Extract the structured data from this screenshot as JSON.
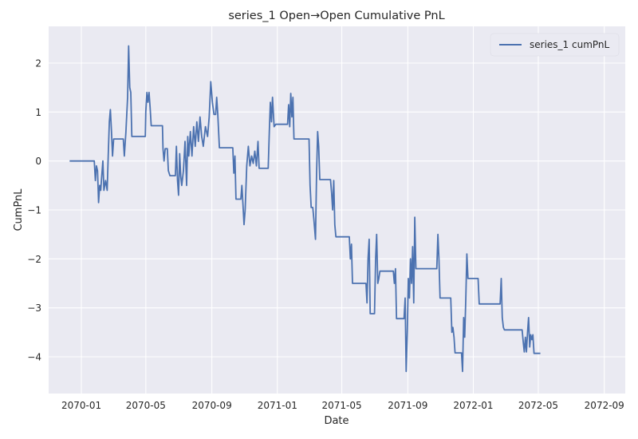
{
  "chart_data": {
    "type": "line",
    "title": "series_1 Open→Open Cumulative PnL",
    "xlabel": "Date",
    "ylabel": "CumPnL",
    "x_type": "date",
    "xlim": [
      "2069-11-01",
      "2072-10-10"
    ],
    "ylim": [
      -4.75,
      2.75
    ],
    "x_ticks": [
      "2070-01",
      "2070-05",
      "2070-09",
      "2071-01",
      "2071-05",
      "2071-09",
      "2072-01",
      "2072-05",
      "2072-09"
    ],
    "y_ticks": [
      -4,
      -3,
      -2,
      -1,
      0,
      1,
      2
    ],
    "grid": true,
    "background": "#eaeaf2",
    "legend": {
      "position": "top-right",
      "entries": [
        "series_1 cumPnL"
      ]
    },
    "series": [
      {
        "name": "series_1 cumPnL",
        "color": "#4c72b0",
        "points": [
          [
            "2069-12-10",
            0.0
          ],
          [
            "2070-01-25",
            0.0
          ],
          [
            "2070-01-27",
            -0.4
          ],
          [
            "2070-01-29",
            -0.1
          ],
          [
            "2070-01-31",
            -0.2
          ],
          [
            "2070-02-02",
            -0.85
          ],
          [
            "2070-02-04",
            -0.5
          ],
          [
            "2070-02-06",
            -0.6
          ],
          [
            "2070-02-08",
            -0.3
          ],
          [
            "2070-02-10",
            0.0
          ],
          [
            "2070-02-12",
            -0.6
          ],
          [
            "2070-02-15",
            -0.4
          ],
          [
            "2070-02-18",
            -0.6
          ],
          [
            "2070-02-20",
            0.1
          ],
          [
            "2070-02-22",
            0.8
          ],
          [
            "2070-02-24",
            1.05
          ],
          [
            "2070-02-26",
            0.6
          ],
          [
            "2070-02-28",
            0.1
          ],
          [
            "2070-03-02",
            0.45
          ],
          [
            "2070-03-20",
            0.45
          ],
          [
            "2070-03-22",
            0.1
          ],
          [
            "2070-03-25",
            0.6
          ],
          [
            "2070-03-28",
            1.3
          ],
          [
            "2070-03-30",
            2.35
          ],
          [
            "2070-04-01",
            1.5
          ],
          [
            "2070-04-03",
            1.4
          ],
          [
            "2070-04-05",
            0.5
          ],
          [
            "2070-04-30",
            0.5
          ],
          [
            "2070-05-01",
            1.0
          ],
          [
            "2070-05-03",
            1.4
          ],
          [
            "2070-05-05",
            1.2
          ],
          [
            "2070-05-07",
            1.4
          ],
          [
            "2070-05-09",
            1.1
          ],
          [
            "2070-05-11",
            0.72
          ],
          [
            "2070-06-01",
            0.72
          ],
          [
            "2070-06-02",
            0.25
          ],
          [
            "2070-06-04",
            0.0
          ],
          [
            "2070-06-06",
            0.25
          ],
          [
            "2070-06-10",
            0.25
          ],
          [
            "2070-06-12",
            -0.2
          ],
          [
            "2070-06-15",
            -0.3
          ],
          [
            "2070-06-25",
            -0.3
          ],
          [
            "2070-06-27",
            0.3
          ],
          [
            "2070-06-29",
            -0.4
          ],
          [
            "2070-07-01",
            -0.7
          ],
          [
            "2070-07-03",
            0.15
          ],
          [
            "2070-07-05",
            -0.3
          ],
          [
            "2070-07-07",
            -0.5
          ],
          [
            "2070-07-10",
            -0.2
          ],
          [
            "2070-07-13",
            0.4
          ],
          [
            "2070-07-16",
            -0.5
          ],
          [
            "2070-07-18",
            0.5
          ],
          [
            "2070-07-20",
            0.1
          ],
          [
            "2070-07-23",
            0.6
          ],
          [
            "2070-07-26",
            0.1
          ],
          [
            "2070-07-29",
            0.7
          ],
          [
            "2070-08-01",
            0.3
          ],
          [
            "2070-08-04",
            0.8
          ],
          [
            "2070-08-07",
            0.4
          ],
          [
            "2070-08-10",
            0.9
          ],
          [
            "2070-08-13",
            0.5
          ],
          [
            "2070-08-16",
            0.3
          ],
          [
            "2070-08-20",
            0.7
          ],
          [
            "2070-08-24",
            0.5
          ],
          [
            "2070-08-27",
            0.9
          ],
          [
            "2070-08-30",
            1.62
          ],
          [
            "2070-09-02",
            1.2
          ],
          [
            "2070-09-05",
            0.95
          ],
          [
            "2070-09-08",
            0.95
          ],
          [
            "2070-09-10",
            1.3
          ],
          [
            "2070-09-12",
            0.95
          ],
          [
            "2070-09-15",
            0.27
          ],
          [
            "2070-10-10",
            0.27
          ],
          [
            "2070-10-12",
            -0.25
          ],
          [
            "2070-10-14",
            0.1
          ],
          [
            "2070-10-16",
            -0.78
          ],
          [
            "2070-10-25",
            -0.78
          ],
          [
            "2070-10-27",
            -0.5
          ],
          [
            "2070-10-29",
            -0.9
          ],
          [
            "2070-10-31",
            -1.3
          ],
          [
            "2070-11-02",
            -1.0
          ],
          [
            "2070-11-05",
            -0.1
          ],
          [
            "2070-11-08",
            0.3
          ],
          [
            "2070-11-11",
            -0.1
          ],
          [
            "2070-11-14",
            0.1
          ],
          [
            "2070-11-17",
            -0.05
          ],
          [
            "2070-11-20",
            0.2
          ],
          [
            "2070-11-23",
            -0.1
          ],
          [
            "2070-11-26",
            0.4
          ],
          [
            "2070-11-28",
            -0.15
          ],
          [
            "2070-12-15",
            -0.15
          ],
          [
            "2070-12-17",
            0.6
          ],
          [
            "2070-12-19",
            1.2
          ],
          [
            "2070-12-21",
            0.8
          ],
          [
            "2070-12-23",
            1.3
          ],
          [
            "2070-12-26",
            0.7
          ],
          [
            "2070-12-29",
            0.75
          ],
          [
            "2071-01-20",
            0.75
          ],
          [
            "2071-01-22",
            1.15
          ],
          [
            "2071-01-24",
            0.7
          ],
          [
            "2071-01-26",
            1.38
          ],
          [
            "2071-01-28",
            0.9
          ],
          [
            "2071-01-30",
            1.3
          ],
          [
            "2071-02-01",
            0.45
          ],
          [
            "2071-03-01",
            0.45
          ],
          [
            "2071-03-03",
            -0.5
          ],
          [
            "2071-03-05",
            -0.95
          ],
          [
            "2071-03-08",
            -0.95
          ],
          [
            "2071-03-10",
            -1.2
          ],
          [
            "2071-03-13",
            -1.6
          ],
          [
            "2071-03-15",
            -0.3
          ],
          [
            "2071-03-17",
            0.6
          ],
          [
            "2071-03-19",
            0.3
          ],
          [
            "2071-03-21",
            -0.38
          ],
          [
            "2071-04-10",
            -0.38
          ],
          [
            "2071-04-12",
            -0.65
          ],
          [
            "2071-04-14",
            -1.0
          ],
          [
            "2071-04-16",
            -0.4
          ],
          [
            "2071-04-18",
            -1.3
          ],
          [
            "2071-04-20",
            -1.55
          ],
          [
            "2071-05-15",
            -1.55
          ],
          [
            "2071-05-17",
            -2.0
          ],
          [
            "2071-05-19",
            -1.7
          ],
          [
            "2071-05-21",
            -2.5
          ],
          [
            "2071-06-15",
            -2.5
          ],
          [
            "2071-06-17",
            -2.9
          ],
          [
            "2071-06-19",
            -2.0
          ],
          [
            "2071-06-21",
            -1.6
          ],
          [
            "2071-06-23",
            -3.12
          ],
          [
            "2071-07-01",
            -3.12
          ],
          [
            "2071-07-03",
            -2.0
          ],
          [
            "2071-07-05",
            -1.5
          ],
          [
            "2071-07-07",
            -2.5
          ],
          [
            "2071-07-09",
            -2.4
          ],
          [
            "2071-07-11",
            -2.25
          ],
          [
            "2071-08-05",
            -2.25
          ],
          [
            "2071-08-07",
            -2.5
          ],
          [
            "2071-08-09",
            -2.2
          ],
          [
            "2071-08-11",
            -3.22
          ],
          [
            "2071-08-25",
            -3.22
          ],
          [
            "2071-08-27",
            -2.8
          ],
          [
            "2071-08-29",
            -4.3
          ],
          [
            "2071-08-31",
            -3.5
          ],
          [
            "2071-09-02",
            -2.4
          ],
          [
            "2071-09-04",
            -2.8
          ],
          [
            "2071-09-06",
            -2.0
          ],
          [
            "2071-09-08",
            -2.5
          ],
          [
            "2071-09-10",
            -1.75
          ],
          [
            "2071-09-12",
            -2.9
          ],
          [
            "2071-09-14",
            -1.15
          ],
          [
            "2071-09-16",
            -2.2
          ],
          [
            "2071-10-25",
            -2.2
          ],
          [
            "2071-10-27",
            -1.5
          ],
          [
            "2071-10-29",
            -2.0
          ],
          [
            "2071-10-31",
            -2.8
          ],
          [
            "2071-11-20",
            -2.8
          ],
          [
            "2071-11-22",
            -3.5
          ],
          [
            "2071-11-24",
            -3.4
          ],
          [
            "2071-11-26",
            -3.6
          ],
          [
            "2071-11-28",
            -3.92
          ],
          [
            "2071-12-10",
            -3.92
          ],
          [
            "2071-12-12",
            -4.3
          ],
          [
            "2071-12-14",
            -3.2
          ],
          [
            "2071-12-16",
            -3.6
          ],
          [
            "2071-12-18",
            -2.8
          ],
          [
            "2071-12-20",
            -1.9
          ],
          [
            "2071-12-22",
            -2.4
          ],
          [
            "2072-01-10",
            -2.4
          ],
          [
            "2072-01-12",
            -2.92
          ],
          [
            "2072-01-14",
            -2.92
          ],
          [
            "2072-02-20",
            -2.92
          ],
          [
            "2072-02-22",
            -2.4
          ],
          [
            "2072-02-24",
            -3.2
          ],
          [
            "2072-02-26",
            -3.4
          ],
          [
            "2072-02-28",
            -3.45
          ],
          [
            "2072-04-01",
            -3.45
          ],
          [
            "2072-04-03",
            -3.7
          ],
          [
            "2072-04-05",
            -3.9
          ],
          [
            "2072-04-07",
            -3.6
          ],
          [
            "2072-04-09",
            -3.9
          ],
          [
            "2072-04-11",
            -3.5
          ],
          [
            "2072-04-13",
            -3.2
          ],
          [
            "2072-04-15",
            -3.8
          ],
          [
            "2072-04-17",
            -3.55
          ],
          [
            "2072-04-19",
            -3.65
          ],
          [
            "2072-04-21",
            -3.55
          ],
          [
            "2072-04-23",
            -3.93
          ],
          [
            "2072-05-01",
            -3.93
          ],
          [
            "2072-05-05",
            -3.93
          ]
        ]
      }
    ]
  }
}
